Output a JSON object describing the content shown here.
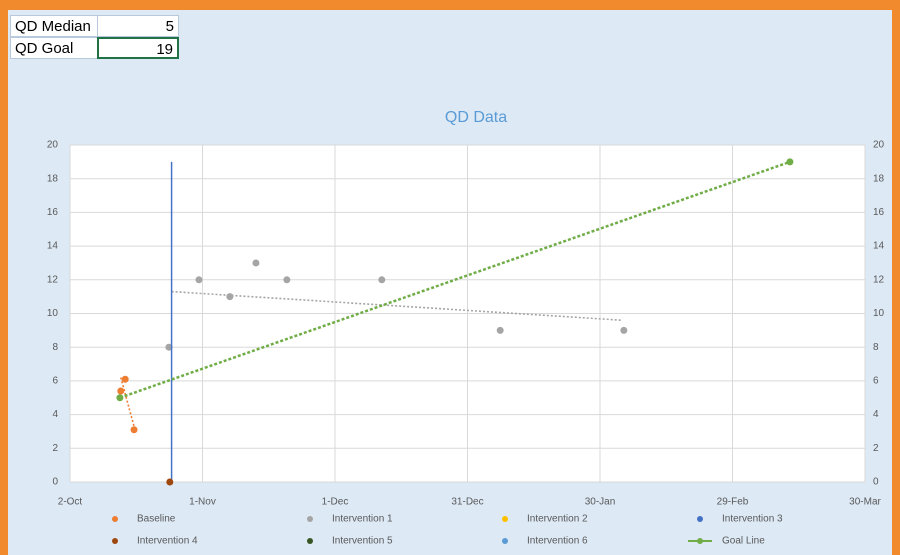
{
  "sheet": {
    "cells": [
      [
        "QD Median",
        5
      ],
      [
        "QD Goal",
        19
      ]
    ]
  },
  "chart_data": {
    "type": "scatter",
    "title": "QD Data",
    "xlim": [
      0,
      180
    ],
    "xticks": [
      {
        "value": 0,
        "label": "2-Oct"
      },
      {
        "value": 30,
        "label": "1-Nov"
      },
      {
        "value": 60,
        "label": "1-Dec"
      },
      {
        "value": 90,
        "label": "31-Dec"
      },
      {
        "value": 120,
        "label": "30-Jan"
      },
      {
        "value": 150,
        "label": "29-Feb"
      },
      {
        "value": 180,
        "label": "30-Mar"
      }
    ],
    "ylim": [
      0,
      20
    ],
    "yticks": [
      0,
      2,
      4,
      6,
      8,
      10,
      12,
      14,
      16,
      18,
      20
    ],
    "y2lim": [
      0,
      20
    ],
    "y2ticks": [
      0,
      2,
      4,
      6,
      8,
      10,
      12,
      14,
      16,
      18,
      20
    ],
    "grid": true,
    "series": [
      {
        "name": "Baseline",
        "color": "#ed7d31",
        "x": [
          11.5,
          12.5,
          14.5
        ],
        "values": [
          5.4,
          6.1,
          3.1
        ]
      },
      {
        "name": "Intervention 1",
        "color": "#a5a5a5",
        "x": [
          22.4,
          29.2,
          36.2,
          42.1,
          49.1,
          70.6,
          97.4,
          125.4
        ],
        "values": [
          8,
          12,
          11,
          13,
          12,
          12,
          9,
          9
        ]
      },
      {
        "name": "Intervention 2",
        "color": "#ffc000",
        "x": [],
        "values": []
      },
      {
        "name": "Intervention 3",
        "color": "#4472c4",
        "x": [
          23,
          23
        ],
        "values": [
          0,
          19
        ],
        "lines": true,
        "markers": false
      },
      {
        "name": "Intervention 4",
        "color": "#9e480e",
        "x": [
          22.6
        ],
        "values": [
          0
        ]
      },
      {
        "name": "Intervention 5",
        "color": "#375623",
        "x": [],
        "values": []
      },
      {
        "name": "Intervention 6",
        "color": "#5b9bd5",
        "x": [],
        "values": []
      },
      {
        "name": "Goal Line",
        "color": "#70ad47",
        "x": [
          11.3,
          163
        ],
        "values": [
          5,
          19
        ],
        "lines": true,
        "markers": true
      }
    ],
    "trendlines": [
      {
        "color": "#ed7d31",
        "x": [
          11.5,
          14.5
        ],
        "values": [
          6.2,
          3.3
        ]
      },
      {
        "color": "#a5a5a5",
        "x": [
          23,
          125
        ],
        "values": [
          11.3,
          9.6
        ]
      }
    ]
  }
}
